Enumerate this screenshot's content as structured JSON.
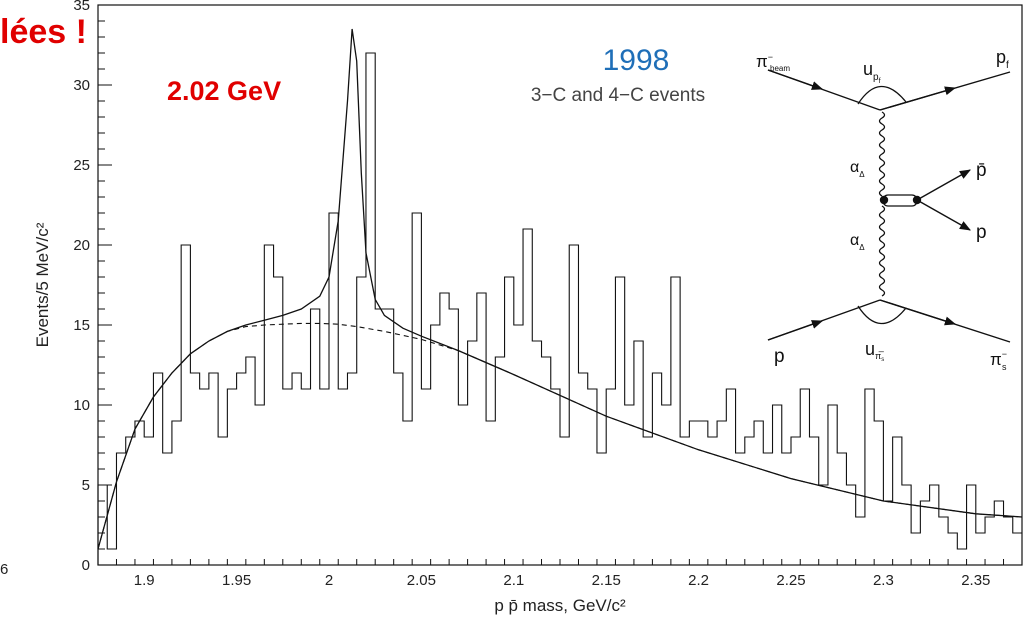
{
  "chart_data": {
    "type": "histogram",
    "xlabel": "p p̄ mass, GeV/c²",
    "ylabel": "Events/5 MeV/c²",
    "xlim": [
      1.875,
      2.375
    ],
    "ylim": [
      0,
      35
    ],
    "x_ticks": [
      "1.9",
      "1.95",
      "2",
      "2.05",
      "2.1",
      "2.15",
      "2.2",
      "2.25",
      "2.3",
      "2.35"
    ],
    "y_ticks": [
      "0",
      "5",
      "10",
      "15",
      "20",
      "25",
      "30",
      "35"
    ],
    "bin_width": 0.005,
    "bin_start": 1.875,
    "counts": [
      5,
      1,
      7,
      8,
      9,
      8,
      12,
      7,
      9,
      20,
      12,
      11,
      12,
      8,
      11,
      12,
      13,
      10,
      20,
      18,
      11,
      12,
      11,
      16,
      11,
      22,
      11,
      12,
      18,
      32,
      16,
      16,
      12,
      9,
      22,
      11,
      15,
      17,
      16,
      10,
      14,
      17,
      9,
      13,
      18,
      15,
      21,
      14,
      13,
      11,
      8,
      20,
      12,
      11,
      7,
      11,
      18,
      10,
      14,
      8,
      12,
      10,
      18,
      8,
      9,
      9,
      8,
      9,
      11,
      7,
      8,
      9,
      7,
      10,
      7,
      8,
      11,
      8,
      5,
      10,
      7,
      5,
      3,
      11,
      9,
      4,
      8,
      5,
      2,
      4,
      5,
      3,
      2,
      1,
      5,
      2,
      3,
      4,
      3,
      2
    ],
    "series": [
      {
        "name": "",
        "style": "solid",
        "x": [
          1.875,
          1.885,
          1.895,
          1.905,
          1.915,
          1.925,
          1.935,
          1.945,
          1.955,
          1.965,
          1.975,
          1.985,
          1.995,
          2.0,
          2.005,
          2.01,
          2.0125,
          2.015,
          2.0175,
          2.02,
          2.025,
          2.03,
          2.04,
          2.05,
          2.07,
          2.1,
          2.15,
          2.2,
          2.25,
          2.3,
          2.35,
          2.375
        ],
        "y": [
          1.0,
          5.2,
          8.5,
          10.5,
          12.0,
          13.2,
          14.0,
          14.6,
          15.0,
          15.3,
          15.6,
          16.0,
          16.8,
          18.0,
          21.5,
          29.0,
          33.5,
          31.5,
          24.5,
          19.5,
          16.6,
          15.6,
          14.8,
          14.3,
          13.4,
          11.9,
          9.3,
          7.2,
          5.4,
          4.0,
          3.2,
          3.0
        ]
      },
      {
        "name": "",
        "style": "dashed",
        "x": [
          1.875,
          1.885,
          1.895,
          1.905,
          1.915,
          1.925,
          1.935,
          1.945,
          1.955,
          1.965,
          1.975,
          1.985,
          1.995,
          2.005,
          2.015,
          2.03,
          2.05,
          2.07,
          2.1,
          2.15,
          2.2,
          2.25,
          2.3,
          2.35,
          2.375
        ],
        "y": [
          1.0,
          5.2,
          8.5,
          10.5,
          12.0,
          13.2,
          14.0,
          14.6,
          14.9,
          15.0,
          15.05,
          15.1,
          15.1,
          15.05,
          14.9,
          14.6,
          14.1,
          13.4,
          11.9,
          9.3,
          7.2,
          5.4,
          4.0,
          3.2,
          3.0
        ]
      }
    ],
    "annotations": {
      "red_title": "lées !",
      "peak_label": "2.02 GeV",
      "year": "1998",
      "event_text": "3−C and 4−C events",
      "left_margin": "6"
    }
  },
  "diagram": {
    "pi_beam": "π",
    "pi_beam_sup": "−",
    "pi_beam_sub": "beam",
    "p_f": "p",
    "p_f_sub": "f",
    "u_top": "u",
    "u_top_sub": "p",
    "u_top_subsub": "f",
    "alpha_top": "α",
    "alpha_top_sub": "Δ",
    "alpha_bottom": "α",
    "alpha_bottom_sub": "Δ",
    "pbar": "p̄",
    "p_out": "p",
    "p_in": "p",
    "u_bottom": "u",
    "u_bottom_sub": "π̅",
    "u_bottom_subsub": "s",
    "pi_s": "π",
    "pi_s_sup": "−",
    "pi_s_sub": "s"
  },
  "colors": {
    "red": "#e00000",
    "blue": "#1f6fb8",
    "line": "#111111"
  }
}
